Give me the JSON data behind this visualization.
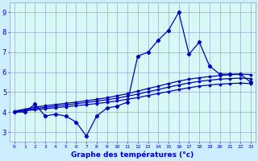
{
  "x": [
    0,
    1,
    2,
    3,
    4,
    5,
    6,
    7,
    8,
    9,
    10,
    11,
    12,
    13,
    14,
    15,
    16,
    17,
    18,
    19,
    20,
    21,
    22,
    23
  ],
  "temp": [
    4.0,
    4.0,
    4.4,
    3.8,
    3.9,
    3.8,
    3.5,
    2.8,
    3.8,
    4.2,
    4.3,
    4.5,
    6.8,
    7.0,
    7.6,
    8.1,
    9.0,
    6.9,
    7.5,
    6.3,
    5.9,
    5.9,
    5.9,
    5.5
  ],
  "upper_line": [
    4.05,
    4.15,
    4.25,
    4.32,
    4.38,
    4.44,
    4.5,
    4.57,
    4.64,
    4.72,
    4.82,
    4.92,
    5.05,
    5.18,
    5.3,
    5.43,
    5.55,
    5.65,
    5.72,
    5.78,
    5.83,
    5.87,
    5.9,
    5.88
  ],
  "mid_line": [
    4.02,
    4.1,
    4.18,
    4.24,
    4.3,
    4.36,
    4.42,
    4.48,
    4.55,
    4.62,
    4.7,
    4.8,
    4.9,
    5.02,
    5.13,
    5.25,
    5.36,
    5.46,
    5.54,
    5.6,
    5.65,
    5.68,
    5.7,
    5.68
  ],
  "lower_line": [
    4.0,
    4.06,
    4.12,
    4.17,
    4.22,
    4.27,
    4.32,
    4.37,
    4.43,
    4.49,
    4.56,
    4.64,
    4.73,
    4.83,
    4.93,
    5.03,
    5.13,
    5.22,
    5.3,
    5.36,
    5.4,
    5.43,
    5.45,
    5.43
  ],
  "background_color": "#cceeff",
  "plot_bg_color": "#d8f8f8",
  "grid_color": "#99aacc",
  "line_color": "#0000bb",
  "axis_label_color": "#0000cc",
  "xlabel": "Graphe des températures (°c)",
  "ylim": [
    2.5,
    9.5
  ],
  "xlim": [
    -0.5,
    23.5
  ],
  "yticks": [
    3,
    4,
    5,
    6,
    7,
    8,
    9
  ],
  "xticks": [
    0,
    1,
    2,
    3,
    4,
    5,
    6,
    7,
    8,
    9,
    10,
    11,
    12,
    13,
    14,
    15,
    16,
    17,
    18,
    19,
    20,
    21,
    22,
    23
  ]
}
